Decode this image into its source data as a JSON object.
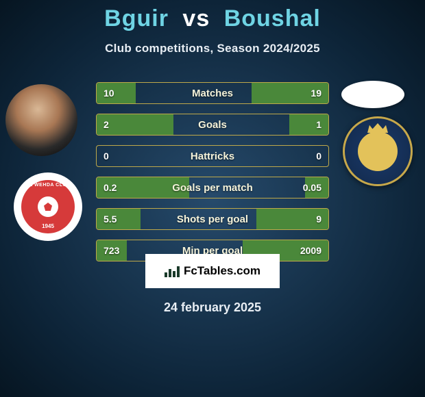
{
  "title": {
    "player1": "Bguir",
    "vs": "vs",
    "player2": "Boushal",
    "color_players": "#6fd4e4",
    "color_vs": "#ffffff"
  },
  "subtitle": "Club competitions, Season 2024/2025",
  "stats": {
    "bar_border_color": "#bfa94a",
    "bar_fill_color": "#4a883a",
    "label_color": "#f5f3da",
    "value_color": "#ffffff",
    "rows": [
      {
        "label": "Matches",
        "left": "10",
        "right": "19",
        "left_pct": 17,
        "right_pct": 33
      },
      {
        "label": "Goals",
        "left": "2",
        "right": "1",
        "left_pct": 33,
        "right_pct": 17
      },
      {
        "label": "Hattricks",
        "left": "0",
        "right": "0",
        "left_pct": 0,
        "right_pct": 0
      },
      {
        "label": "Goals per match",
        "left": "0.2",
        "right": "0.05",
        "left_pct": 40,
        "right_pct": 10
      },
      {
        "label": "Shots per goal",
        "left": "5.5",
        "right": "9",
        "left_pct": 19,
        "right_pct": 31
      },
      {
        "label": "Min per goal",
        "left": "723",
        "right": "2009",
        "left_pct": 13,
        "right_pct": 37
      }
    ]
  },
  "clubs": {
    "left_name": "AL WEHDA CLUB",
    "left_year": "1945",
    "left_bg": "#d63a3a",
    "right_bg": "#1a3a6b",
    "right_accent": "#e3c25a"
  },
  "footer": {
    "logo_text": "FcTables.com",
    "date": "24 february 2025"
  },
  "colors": {
    "bg_center": "#264a6b",
    "bg_edge": "#061521"
  }
}
